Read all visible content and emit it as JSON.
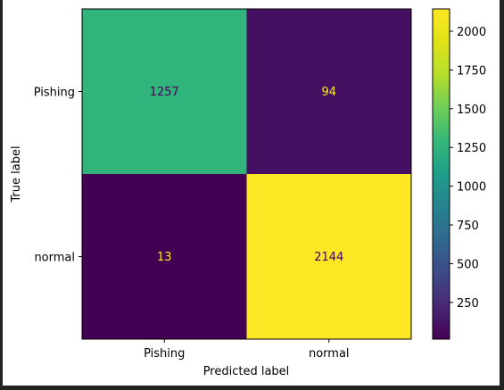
{
  "chart_data": {
    "type": "heatmap",
    "title": "",
    "xlabel": "Predicted label",
    "ylabel": "True label",
    "x_categories": [
      "Pishing",
      "normal"
    ],
    "y_categories": [
      "Pishing",
      "normal"
    ],
    "matrix": [
      [
        1257,
        94
      ],
      [
        13,
        2144
      ]
    ],
    "colormap": "viridis",
    "colorbar": {
      "vmin": 13,
      "vmax": 2144,
      "ticks": [
        250,
        500,
        750,
        1000,
        1250,
        1500,
        1750,
        2000
      ],
      "tick_labels": [
        "250",
        "500",
        "750",
        "1000",
        "1250",
        "1500",
        "1750",
        "2000"
      ]
    },
    "text_colors": {
      "light": "#fde725",
      "dark": "#440154"
    }
  }
}
